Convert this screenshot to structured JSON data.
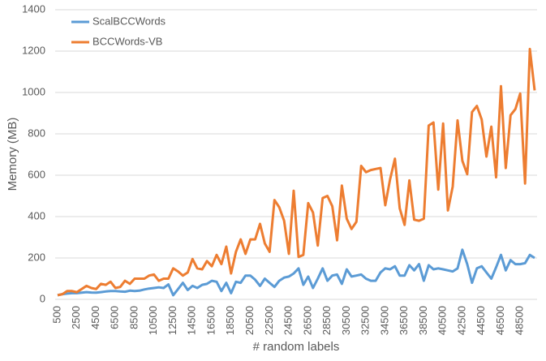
{
  "chart_data": {
    "type": "line",
    "x_label": "# random labels",
    "y_label": "Memory (MB)",
    "categories": [
      "500",
      null,
      null,
      null,
      "2500",
      null,
      null,
      null,
      "4500",
      null,
      null,
      null,
      "6500",
      null,
      null,
      null,
      "8500",
      null,
      null,
      null,
      "10500",
      null,
      null,
      null,
      "12500",
      null,
      null,
      null,
      "14500",
      null,
      null,
      null,
      "16500",
      null,
      null,
      null,
      "18500",
      null,
      null,
      null,
      "20500",
      null,
      null,
      null,
      "22500",
      null,
      null,
      null,
      "24500",
      null,
      null,
      null,
      "26500",
      null,
      null,
      null,
      "28500",
      null,
      null,
      null,
      "30500",
      null,
      null,
      null,
      "32500",
      null,
      null,
      null,
      "34500",
      null,
      null,
      null,
      "36500",
      null,
      null,
      null,
      "38500",
      null,
      null,
      null,
      "40500",
      null,
      null,
      null,
      "42500",
      null,
      null,
      null,
      "44500",
      null,
      null,
      null,
      "46500",
      null,
      null,
      null,
      "48500",
      null,
      null,
      null
    ],
    "series": [
      {
        "name": "ScalBCCWords",
        "color": "#5b9bd5",
        "values": [
          20,
          25,
          28,
          30,
          30,
          32,
          35,
          33,
          32,
          35,
          38,
          40,
          40,
          38,
          37,
          42,
          40,
          42,
          48,
          52,
          55,
          58,
          55,
          72,
          20,
          50,
          80,
          45,
          65,
          55,
          70,
          75,
          90,
          85,
          40,
          80,
          30,
          85,
          80,
          115,
          115,
          95,
          65,
          100,
          80,
          60,
          90,
          105,
          110,
          125,
          150,
          70,
          110,
          55,
          100,
          150,
          90,
          115,
          120,
          75,
          145,
          110,
          115,
          120,
          100,
          90,
          90,
          130,
          150,
          145,
          160,
          115,
          115,
          165,
          140,
          170,
          90,
          165,
          145,
          150,
          145,
          140,
          135,
          150,
          240,
          170,
          80,
          150,
          160,
          130,
          100,
          155,
          215,
          140,
          190,
          170,
          170,
          175,
          215,
          200
        ]
      },
      {
        "name": "BCCWords-VB",
        "color": "#ed7d31",
        "values": [
          20,
          25,
          40,
          40,
          35,
          50,
          65,
          55,
          50,
          75,
          70,
          85,
          55,
          60,
          90,
          75,
          100,
          100,
          100,
          115,
          120,
          90,
          100,
          100,
          150,
          135,
          115,
          130,
          195,
          150,
          145,
          185,
          160,
          215,
          170,
          255,
          125,
          230,
          290,
          220,
          290,
          290,
          365,
          270,
          230,
          480,
          445,
          380,
          220,
          525,
          205,
          215,
          465,
          420,
          260,
          490,
          500,
          450,
          285,
          550,
          390,
          340,
          375,
          645,
          615,
          625,
          630,
          635,
          455,
          580,
          680,
          440,
          360,
          575,
          385,
          380,
          390,
          840,
          855,
          530,
          850,
          430,
          545,
          865,
          670,
          605,
          905,
          935,
          870,
          690,
          835,
          590,
          1030,
          635,
          890,
          920,
          995,
          560,
          1210,
          1010
        ]
      }
    ],
    "ylim": [
      0,
      1400
    ],
    "yticks": [
      0,
      200,
      400,
      600,
      800,
      1000,
      1200,
      1400
    ],
    "grid": true,
    "legend": "upper left"
  }
}
